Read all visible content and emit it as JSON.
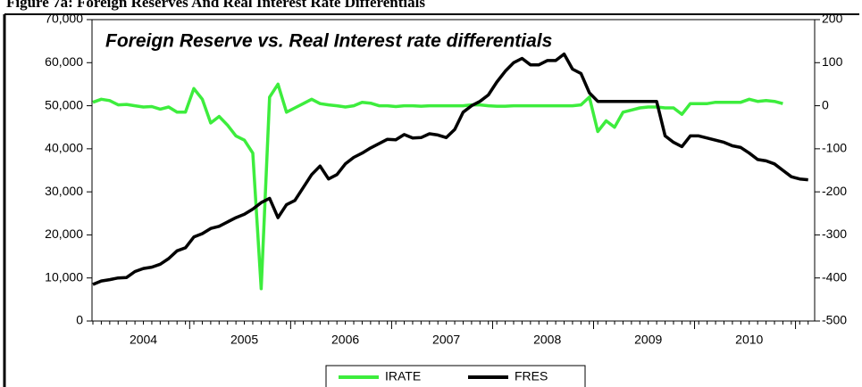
{
  "chart_data": {
    "type": "line",
    "title": "Figure 7a: Foreign Reserves And Real Interest Rate Differentials",
    "subtitle": "Foreign Reserve vs. Real Interest rate differentials",
    "categories": [
      null,
      null,
      null,
      null,
      null,
      null,
      "2004",
      null,
      null,
      null,
      null,
      null,
      null,
      null,
      null,
      null,
      null,
      null,
      "2005",
      null,
      null,
      null,
      null,
      null,
      null,
      null,
      null,
      null,
      null,
      null,
      "2006",
      null,
      null,
      null,
      null,
      null,
      null,
      null,
      null,
      null,
      null,
      null,
      "2007",
      null,
      null,
      null,
      null,
      null,
      null,
      null,
      null,
      null,
      null,
      null,
      "2008",
      null,
      null,
      null,
      null,
      null,
      null,
      null,
      null,
      null,
      null,
      null,
      "2009",
      null,
      null,
      null,
      null,
      null,
      null,
      null,
      null,
      null,
      null,
      null,
      "2010",
      null,
      null,
      null,
      null,
      null,
      null,
      null
    ],
    "series": [
      {
        "name": "IRATE",
        "color": "#3ded3d",
        "axis": "y2",
        "values": [
          8,
          15,
          12,
          2,
          3,
          0,
          -3,
          -2,
          -8,
          -3,
          -15,
          -15,
          40,
          15,
          -40,
          -25,
          -45,
          -70,
          -80,
          -110,
          -425,
          20,
          50,
          -15,
          -5,
          5,
          15,
          5,
          2,
          0,
          -3,
          0,
          8,
          6,
          0,
          0,
          -2,
          0,
          0,
          -1,
          0,
          0,
          0,
          0,
          0,
          2,
          2,
          0,
          -1,
          -1,
          0,
          0,
          0,
          0,
          0,
          0,
          0,
          0,
          2,
          20,
          -60,
          -35,
          -50,
          -15,
          -10,
          -5,
          -3,
          -3,
          -5,
          -5,
          -20,
          5,
          5,
          5,
          8,
          8,
          8,
          8,
          15,
          10,
          12,
          10,
          5,
          null,
          null,
          null
        ]
      },
      {
        "name": "FRES",
        "color": "#000000",
        "values": [
          8500,
          9300,
          9600,
          10000,
          10100,
          11500,
          12200,
          12500,
          13200,
          14500,
          16300,
          17000,
          19500,
          20300,
          21500,
          22000,
          23000,
          24000,
          24800,
          26000,
          27500,
          28500,
          24000,
          27000,
          28000,
          31000,
          34000,
          36000,
          33000,
          34000,
          36500,
          38000,
          39000,
          40200,
          41200,
          42200,
          42100,
          43300,
          42500,
          42600,
          43500,
          43200,
          42600,
          44500,
          48500,
          50000,
          51000,
          52500,
          55500,
          58000,
          60000,
          61000,
          59500,
          59500,
          60500,
          60500,
          62000,
          58500,
          57500,
          53000,
          51000,
          51000,
          51000,
          51000,
          51000,
          51000,
          51000,
          51000,
          43000,
          41500,
          40500,
          43000,
          43000,
          42500,
          42000,
          41500,
          40700,
          40300,
          39000,
          37500,
          37200,
          36500,
          35000,
          33500,
          33000,
          32800
        ]
      }
    ],
    "ylim": [
      0,
      70000
    ],
    "yticks": [
      0,
      {
        "value": 10000,
        "label": "10,000"
      },
      {
        "value": 20000,
        "label": "20,000"
      },
      {
        "value": 30000,
        "label": "30,000"
      },
      {
        "value": 40000,
        "label": "40,000"
      },
      {
        "value": 50000,
        "label": "50,000"
      },
      {
        "value": 60000,
        "label": "60,000"
      },
      {
        "value": 70000,
        "label": "70,000"
      }
    ],
    "y2lim": [
      -500,
      200
    ],
    "y2ticks": [
      -500,
      -400,
      -300,
      -200,
      -100,
      0,
      100,
      200
    ],
    "legend": "bottom"
  }
}
